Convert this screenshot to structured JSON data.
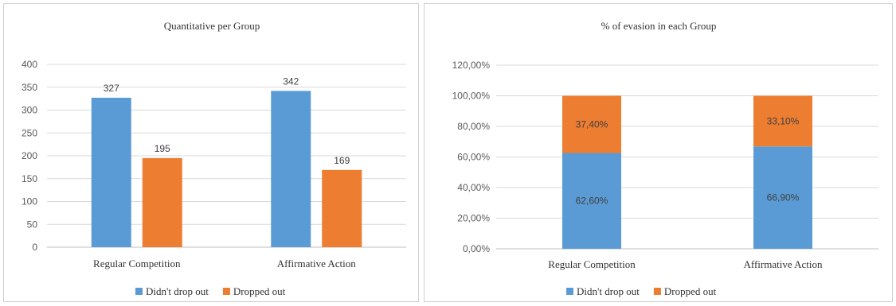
{
  "chart_data": [
    {
      "type": "bar",
      "title": "Quantitative  per Group",
      "categories": [
        "Regular Competition",
        "Affirmative Action"
      ],
      "series": [
        {
          "name": "Didn't drop out",
          "values": [
            327,
            342
          ],
          "color": "#5B9BD5"
        },
        {
          "name": "Dropped out",
          "values": [
            195,
            169
          ],
          "color": "#ED7D31"
        }
      ],
      "ylim": [
        0,
        400
      ],
      "yticks": [
        "0",
        "50",
        "100",
        "150",
        "200",
        "250",
        "300",
        "350",
        "400"
      ],
      "grid": true,
      "legend": "bottom"
    },
    {
      "type": "bar",
      "stacked": true,
      "title": "% of evasion in each Group",
      "categories": [
        "Regular Competition",
        "Affirmative Action"
      ],
      "series": [
        {
          "name": "Didn't drop out",
          "values": [
            62.6,
            66.9
          ],
          "labels": [
            "62,60%",
            "66,90%"
          ],
          "color": "#5B9BD5"
        },
        {
          "name": "Dropped out",
          "values": [
            37.4,
            33.1
          ],
          "labels": [
            "37,40%",
            "33,10%"
          ],
          "color": "#ED7D31"
        }
      ],
      "ylim": [
        0,
        120
      ],
      "yticks": [
        "0,00%",
        "20,00%",
        "40,00%",
        "60,00%",
        "80,00%",
        "100,00%",
        "120,00%"
      ],
      "grid": true,
      "legend": "bottom"
    }
  ]
}
